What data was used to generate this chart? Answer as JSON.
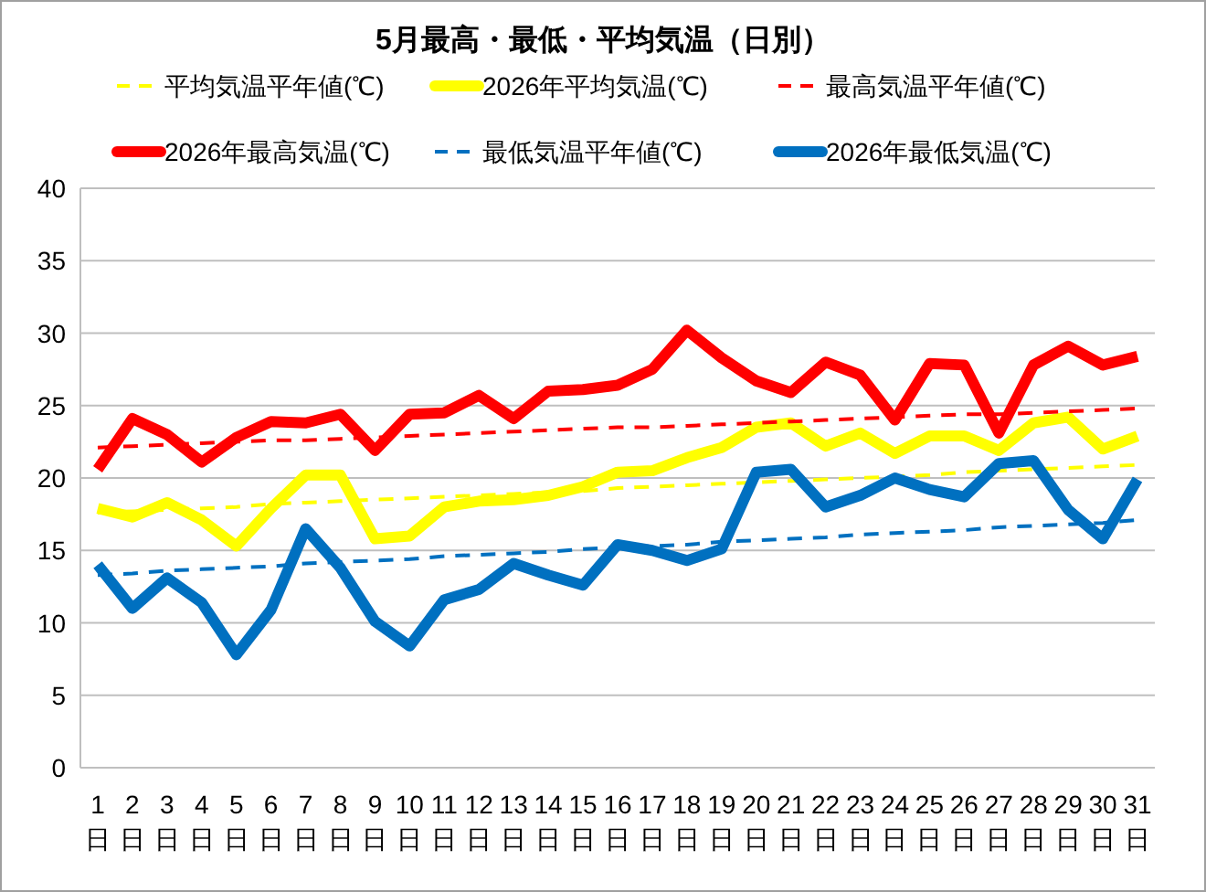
{
  "chart_data": {
    "type": "line",
    "title": "5月最高・最低・平均気温（日別）",
    "categories": [
      "1日",
      "2日",
      "3日",
      "4日",
      "5日",
      "6日",
      "7日",
      "8日",
      "9日",
      "10日",
      "11日",
      "12日",
      "13日",
      "14日",
      "15日",
      "16日",
      "17日",
      "18日",
      "19日",
      "20日",
      "21日",
      "22日",
      "23日",
      "24日",
      "25日",
      "26日",
      "27日",
      "28日",
      "29日",
      "30日",
      "31日"
    ],
    "series": [
      {
        "name": "平均気温平年値(℃)",
        "color": "#ffff00",
        "line_style": "dashed",
        "values": [
          17.6,
          17.7,
          17.8,
          17.9,
          18.0,
          18.2,
          18.3,
          18.4,
          18.5,
          18.6,
          18.7,
          18.8,
          18.9,
          19.0,
          19.1,
          19.3,
          19.4,
          19.5,
          19.6,
          19.7,
          19.8,
          19.9,
          20.0,
          20.1,
          20.2,
          20.4,
          20.5,
          20.6,
          20.7,
          20.8,
          20.9
        ]
      },
      {
        "name": "2026年平均気温(℃)",
        "color": "#ffff00",
        "line_style": "solid",
        "values": [
          17.9,
          17.3,
          18.3,
          17.1,
          15.3,
          17.9,
          20.2,
          20.2,
          15.8,
          16.0,
          18.0,
          18.4,
          18.5,
          18.8,
          19.4,
          20.4,
          20.5,
          21.4,
          22.1,
          23.5,
          23.8,
          22.2,
          23.1,
          21.7,
          22.9,
          22.9,
          21.9,
          23.8,
          24.2,
          22.0,
          22.9
        ]
      },
      {
        "name": "最高気温平年値(℃)",
        "color": "#ff0000",
        "line_style": "dashed",
        "values": [
          22.1,
          22.2,
          22.3,
          22.4,
          22.5,
          22.6,
          22.6,
          22.7,
          22.8,
          22.9,
          23.0,
          23.1,
          23.2,
          23.3,
          23.4,
          23.5,
          23.5,
          23.6,
          23.7,
          23.8,
          23.9,
          24.0,
          24.1,
          24.2,
          24.3,
          24.4,
          24.4,
          24.5,
          24.6,
          24.7,
          24.8
        ]
      },
      {
        "name": "2026年最高気温(℃)",
        "color": "#ff0000",
        "line_style": "solid",
        "values": [
          20.6,
          24.1,
          23.0,
          21.1,
          22.8,
          23.9,
          23.8,
          24.4,
          21.9,
          24.4,
          24.5,
          25.7,
          24.1,
          26.0,
          26.1,
          26.4,
          27.5,
          30.2,
          28.3,
          26.7,
          25.9,
          28.0,
          27.1,
          24.0,
          27.9,
          27.8,
          23.1,
          27.8,
          29.1,
          27.8,
          28.4
        ]
      },
      {
        "name": "最低気温平年値(℃)",
        "color": "#0070c0",
        "line_style": "dashed",
        "values": [
          13.3,
          13.4,
          13.6,
          13.7,
          13.8,
          13.9,
          14.1,
          14.2,
          14.3,
          14.4,
          14.6,
          14.7,
          14.8,
          14.9,
          15.1,
          15.2,
          15.3,
          15.4,
          15.6,
          15.7,
          15.8,
          15.9,
          16.1,
          16.2,
          16.3,
          16.4,
          16.6,
          16.7,
          16.8,
          16.9,
          17.1
        ]
      },
      {
        "name": "2026年最低気温(℃)",
        "color": "#0070c0",
        "line_style": "solid",
        "values": [
          14.0,
          11.0,
          13.1,
          11.4,
          7.8,
          10.9,
          16.5,
          13.8,
          10.1,
          8.4,
          11.6,
          12.3,
          14.1,
          13.3,
          12.6,
          15.4,
          15.0,
          14.3,
          15.1,
          20.4,
          20.6,
          18.0,
          18.8,
          20.0,
          19.2,
          18.7,
          21.0,
          21.2,
          17.8,
          15.8,
          19.9
        ]
      }
    ],
    "ylim": [
      0,
      40
    ],
    "yticks": [
      0,
      5,
      10,
      15,
      20,
      25,
      30,
      35,
      40
    ],
    "grid": "y",
    "legend": "top",
    "marker": "none"
  }
}
